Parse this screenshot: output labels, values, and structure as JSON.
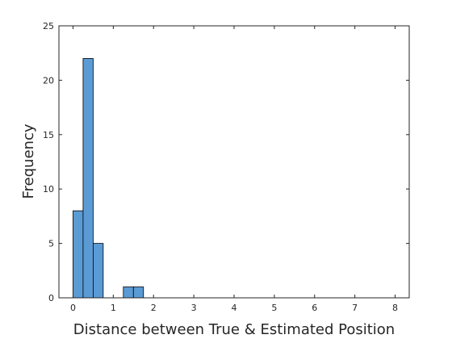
{
  "chart_data": {
    "type": "bar",
    "subtype": "histogram",
    "title": "",
    "xlabel": "Distance between True & Estimated Position",
    "ylabel": "Frequency",
    "xlim": [
      -0.35,
      8.35
    ],
    "ylim": [
      0,
      25
    ],
    "xticks": [
      0,
      1,
      2,
      3,
      4,
      5,
      6,
      7,
      8
    ],
    "yticks": [
      0,
      5,
      10,
      15,
      20,
      25
    ],
    "bin_width": 0.25,
    "bins": [
      {
        "x0": 0.0,
        "x1": 0.25,
        "count": 8
      },
      {
        "x0": 0.25,
        "x1": 0.5,
        "count": 22
      },
      {
        "x0": 0.5,
        "x1": 0.75,
        "count": 5
      },
      {
        "x0": 1.25,
        "x1": 1.5,
        "count": 1
      },
      {
        "x0": 1.5,
        "x1": 1.75,
        "count": 1
      }
    ],
    "grid": false,
    "box": true,
    "bar_color": "#5B9BD5",
    "edge_color": "#000000"
  }
}
